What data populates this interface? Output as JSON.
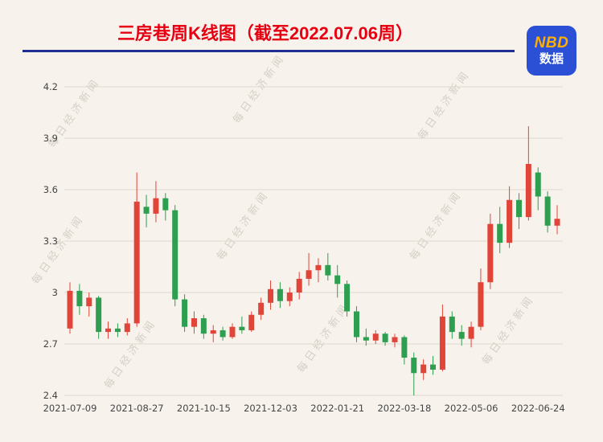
{
  "page": {
    "background": "#f7f3ec"
  },
  "header": {
    "title": "三房巷周K线图（截至2022.07.06周）",
    "title_color": "#e60012",
    "divider_color": "#1f2e91",
    "logo": {
      "line1": "NBD",
      "line2": "数据",
      "bg": "#2b50d5",
      "line1_color": "#ffaf00",
      "line2_color": "#ffffff"
    }
  },
  "watermark": {
    "text": "每日经济新闻"
  },
  "chart_data": {
    "type": "candlestick",
    "title": "三房巷周K线图（截至2022.07.06周）",
    "xlabel": "",
    "ylabel": "",
    "ylim": [
      2.4,
      4.2
    ],
    "ytick_labels": [
      "4.2",
      "3.9",
      "3.6",
      "3.3",
      "3",
      "2.7",
      "2.4"
    ],
    "xtick_indices": [
      0,
      7,
      14,
      21,
      28,
      35,
      42,
      49
    ],
    "xtick_labels": [
      "2021-07-09",
      "2021-08-27",
      "2021-10-15",
      "2021-12-03",
      "2022-01-21",
      "2022-03-18",
      "2022-05-06",
      "2022-06-24"
    ],
    "grid": true,
    "legend": false,
    "colors": {
      "up": "#e14438",
      "down": "#2e9e50",
      "grid": "#ddd8cf",
      "axis_text": "#444444"
    },
    "candles": [
      {
        "date": "2021-07-09",
        "o": 2.79,
        "h": 3.06,
        "l": 2.76,
        "c": 3.01
      },
      {
        "date": "2021-07-16",
        "o": 3.01,
        "h": 3.05,
        "l": 2.87,
        "c": 2.92
      },
      {
        "date": "2021-07-23",
        "o": 2.92,
        "h": 3.0,
        "l": 2.86,
        "c": 2.97
      },
      {
        "date": "2021-07-30",
        "o": 2.97,
        "h": 2.98,
        "l": 2.73,
        "c": 2.77
      },
      {
        "date": "2021-08-06",
        "o": 2.77,
        "h": 2.83,
        "l": 2.73,
        "c": 2.79
      },
      {
        "date": "2021-08-13",
        "o": 2.79,
        "h": 2.82,
        "l": 2.74,
        "c": 2.77
      },
      {
        "date": "2021-08-20",
        "o": 2.77,
        "h": 2.85,
        "l": 2.75,
        "c": 2.82
      },
      {
        "date": "2021-08-27",
        "o": 2.82,
        "h": 3.7,
        "l": 2.8,
        "c": 3.53
      },
      {
        "date": "2021-09-03",
        "o": 3.5,
        "h": 3.57,
        "l": 3.38,
        "c": 3.46
      },
      {
        "date": "2021-09-10",
        "o": 3.46,
        "h": 3.65,
        "l": 3.41,
        "c": 3.55
      },
      {
        "date": "2021-09-17",
        "o": 3.55,
        "h": 3.58,
        "l": 3.42,
        "c": 3.48
      },
      {
        "date": "2021-09-24",
        "o": 3.48,
        "h": 3.51,
        "l": 2.92,
        "c": 2.96
      },
      {
        "date": "2021-09-30",
        "o": 2.96,
        "h": 2.99,
        "l": 2.77,
        "c": 2.8
      },
      {
        "date": "2021-10-08",
        "o": 2.8,
        "h": 2.89,
        "l": 2.76,
        "c": 2.85
      },
      {
        "date": "2021-10-15",
        "o": 2.85,
        "h": 2.87,
        "l": 2.73,
        "c": 2.76
      },
      {
        "date": "2021-10-22",
        "o": 2.76,
        "h": 2.81,
        "l": 2.71,
        "c": 2.78
      },
      {
        "date": "2021-10-29",
        "o": 2.78,
        "h": 2.8,
        "l": 2.72,
        "c": 2.74
      },
      {
        "date": "2021-11-05",
        "o": 2.74,
        "h": 2.82,
        "l": 2.73,
        "c": 2.8
      },
      {
        "date": "2021-11-12",
        "o": 2.8,
        "h": 2.86,
        "l": 2.76,
        "c": 2.78
      },
      {
        "date": "2021-11-19",
        "o": 2.78,
        "h": 2.89,
        "l": 2.77,
        "c": 2.87
      },
      {
        "date": "2021-11-26",
        "o": 2.87,
        "h": 2.97,
        "l": 2.84,
        "c": 2.94
      },
      {
        "date": "2021-12-03",
        "o": 2.94,
        "h": 3.07,
        "l": 2.9,
        "c": 3.02
      },
      {
        "date": "2021-12-10",
        "o": 3.02,
        "h": 3.06,
        "l": 2.91,
        "c": 2.95
      },
      {
        "date": "2021-12-17",
        "o": 2.95,
        "h": 3.03,
        "l": 2.92,
        "c": 3.0
      },
      {
        "date": "2021-12-24",
        "o": 3.0,
        "h": 3.12,
        "l": 2.96,
        "c": 3.08
      },
      {
        "date": "2021-12-31",
        "o": 3.08,
        "h": 3.23,
        "l": 3.04,
        "c": 3.13
      },
      {
        "date": "2022-01-07",
        "o": 3.13,
        "h": 3.2,
        "l": 3.06,
        "c": 3.16
      },
      {
        "date": "2022-01-14",
        "o": 3.16,
        "h": 3.23,
        "l": 3.07,
        "c": 3.1
      },
      {
        "date": "2022-01-21",
        "o": 3.1,
        "h": 3.16,
        "l": 2.97,
        "c": 3.05
      },
      {
        "date": "2022-01-28",
        "o": 3.05,
        "h": 3.07,
        "l": 2.86,
        "c": 2.89
      },
      {
        "date": "2022-02-11",
        "o": 2.89,
        "h": 2.92,
        "l": 2.71,
        "c": 2.74
      },
      {
        "date": "2022-02-18",
        "o": 2.74,
        "h": 2.79,
        "l": 2.69,
        "c": 2.72
      },
      {
        "date": "2022-02-25",
        "o": 2.72,
        "h": 2.78,
        "l": 2.7,
        "c": 2.76
      },
      {
        "date": "2022-03-04",
        "o": 2.76,
        "h": 2.77,
        "l": 2.69,
        "c": 2.71
      },
      {
        "date": "2022-03-11",
        "o": 2.71,
        "h": 2.76,
        "l": 2.68,
        "c": 2.74
      },
      {
        "date": "2022-03-18",
        "o": 2.74,
        "h": 2.75,
        "l": 2.58,
        "c": 2.62
      },
      {
        "date": "2022-03-25",
        "o": 2.62,
        "h": 2.65,
        "l": 2.4,
        "c": 2.53
      },
      {
        "date": "2022-04-01",
        "o": 2.53,
        "h": 2.61,
        "l": 2.49,
        "c": 2.58
      },
      {
        "date": "2022-04-08",
        "o": 2.58,
        "h": 2.63,
        "l": 2.52,
        "c": 2.55
      },
      {
        "date": "2022-04-15",
        "o": 2.55,
        "h": 2.93,
        "l": 2.54,
        "c": 2.86
      },
      {
        "date": "2022-04-22",
        "o": 2.86,
        "h": 2.89,
        "l": 2.73,
        "c": 2.77
      },
      {
        "date": "2022-04-29",
        "o": 2.77,
        "h": 2.81,
        "l": 2.69,
        "c": 2.73
      },
      {
        "date": "2022-05-06",
        "o": 2.73,
        "h": 2.83,
        "l": 2.68,
        "c": 2.8
      },
      {
        "date": "2022-05-13",
        "o": 2.8,
        "h": 3.14,
        "l": 2.78,
        "c": 3.06
      },
      {
        "date": "2022-05-20",
        "o": 3.06,
        "h": 3.46,
        "l": 3.02,
        "c": 3.4
      },
      {
        "date": "2022-05-27",
        "o": 3.4,
        "h": 3.5,
        "l": 3.23,
        "c": 3.29
      },
      {
        "date": "2022-06-02",
        "o": 3.29,
        "h": 3.62,
        "l": 3.26,
        "c": 3.54
      },
      {
        "date": "2022-06-10",
        "o": 3.54,
        "h": 3.58,
        "l": 3.37,
        "c": 3.44
      },
      {
        "date": "2022-06-17",
        "o": 3.44,
        "h": 3.97,
        "l": 3.42,
        "c": 3.75
      },
      {
        "date": "2022-06-24",
        "o": 3.7,
        "h": 3.73,
        "l": 3.48,
        "c": 3.56
      },
      {
        "date": "2022-07-01",
        "o": 3.56,
        "h": 3.59,
        "l": 3.35,
        "c": 3.39
      },
      {
        "date": "2022-07-06",
        "o": 3.39,
        "h": 3.51,
        "l": 3.34,
        "c": 3.43
      }
    ]
  }
}
